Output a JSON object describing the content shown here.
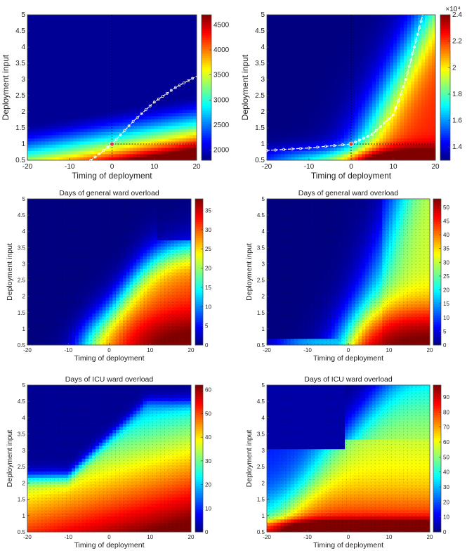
{
  "figure": {
    "colormap": "jet",
    "colors": {
      "low": "#00008f",
      "mid": "#80ff80",
      "high": "#800000",
      "marker": "#e03b3b",
      "dashed_line": "#000000"
    }
  },
  "chart_data": [
    {
      "type": "heatmap",
      "id": "p1",
      "title": "",
      "xlabel": "Timing of deployment",
      "ylabel": "Deployment input",
      "xlim": [
        -20,
        20
      ],
      "ylim": [
        0.5,
        5
      ],
      "xticks": [
        "-20",
        "-10",
        "0",
        "10",
        "20"
      ],
      "yticks": [
        "0.5",
        "1",
        "1.5",
        "2",
        "2.5",
        "3",
        "3.5",
        "4",
        "4.5",
        "5"
      ],
      "colorbar": {
        "range": [
          1800,
          4700
        ],
        "ticks": [
          "2000",
          "2500",
          "3000",
          "3500",
          "4000",
          "4500"
        ],
        "exponent": ""
      },
      "marker": {
        "x": 0,
        "y": 1
      },
      "optimal_curve": [
        [
          -5,
          0.5
        ],
        [
          0,
          1.0
        ],
        [
          5,
          1.7
        ],
        [
          10,
          2.3
        ],
        [
          15,
          2.75
        ],
        [
          20,
          3.1
        ]
      ],
      "reference_lines": {
        "x": 0,
        "y": 1
      }
    },
    {
      "type": "heatmap",
      "id": "p2",
      "title": "",
      "xlabel": "Timing of deployment",
      "ylabel": "Deployment input",
      "xlim": [
        -20,
        20
      ],
      "ylim": [
        0.5,
        5
      ],
      "xticks": [
        "-20",
        "-10",
        "0",
        "10",
        "20"
      ],
      "yticks": [
        "0.5",
        "1",
        "1.5",
        "2",
        "2.5",
        "3",
        "3.5",
        "4",
        "4.5",
        "5"
      ],
      "colorbar": {
        "range": [
          1.3,
          2.4
        ],
        "ticks": [
          "1.4",
          "1.6",
          "1.8",
          "2",
          "2.2",
          "2.4"
        ],
        "exponent": "×10⁴"
      },
      "marker": {
        "x": 0,
        "y": 1
      },
      "optimal_curve": [
        [
          -20,
          0.8
        ],
        [
          -10,
          0.88
        ],
        [
          0,
          1.0
        ],
        [
          5,
          1.3
        ],
        [
          10,
          1.9
        ],
        [
          13,
          3.0
        ],
        [
          15,
          4.0
        ],
        [
          17,
          5.0
        ]
      ],
      "reference_lines": {
        "x": 0,
        "y": 1
      }
    },
    {
      "type": "heatmap",
      "id": "p3",
      "title": "Days of general ward overload",
      "xlabel": "Timing of deployment",
      "ylabel": "Deployment input",
      "xlim": [
        -20,
        20
      ],
      "ylim": [
        0.5,
        5
      ],
      "xticks": [
        "-20",
        "-10",
        "0",
        "10",
        "20"
      ],
      "yticks": [
        "0.5",
        "1",
        "1.5",
        "2",
        "2.5",
        "3",
        "3.5",
        "4",
        "4.5",
        "5"
      ],
      "colorbar": {
        "range": [
          0,
          38
        ],
        "ticks": [
          "0",
          "5",
          "10",
          "15",
          "20",
          "25",
          "30",
          "35"
        ],
        "exponent": ""
      }
    },
    {
      "type": "heatmap",
      "id": "p4",
      "title": "Days of general ward overload",
      "xlabel": "Timing of deployment",
      "ylabel": "Deployment input",
      "xlim": [
        -20,
        20
      ],
      "ylim": [
        0.5,
        5
      ],
      "xticks": [
        "-20",
        "-10",
        "0",
        "10",
        "20"
      ],
      "yticks": [
        "0.5",
        "1",
        "1.5",
        "2",
        "2.5",
        "3",
        "3.5",
        "4",
        "4.5",
        "5"
      ],
      "colorbar": {
        "range": [
          0,
          53
        ],
        "ticks": [
          "0",
          "5",
          "10",
          "15",
          "20",
          "25",
          "30",
          "35",
          "40",
          "45",
          "50"
        ],
        "exponent": ""
      }
    },
    {
      "type": "heatmap",
      "id": "p5",
      "title": "Days of ICU ward overload",
      "xlabel": "Timing of deployment",
      "ylabel": "Deployment input",
      "xlim": [
        -20,
        20
      ],
      "ylim": [
        0.5,
        5
      ],
      "xticks": [
        "-20",
        "-10",
        "0",
        "10",
        "20"
      ],
      "yticks": [
        "0.5",
        "1",
        "1.5",
        "2",
        "2.5",
        "3",
        "3.5",
        "4",
        "4.5",
        "5"
      ],
      "colorbar": {
        "range": [
          0,
          62
        ],
        "ticks": [
          "0",
          "10",
          "20",
          "30",
          "40",
          "50",
          "60"
        ],
        "exponent": ""
      }
    },
    {
      "type": "heatmap",
      "id": "p6",
      "title": "Days of ICU ward overload",
      "xlabel": "Timing of deployment",
      "ylabel": "Deployment input",
      "xlim": [
        -20,
        20
      ],
      "ylim": [
        0.5,
        5
      ],
      "xticks": [
        "-20",
        "-10",
        "0",
        "10",
        "20"
      ],
      "yticks": [
        "0.5",
        "1",
        "1.5",
        "2",
        "2.5",
        "3",
        "3.5",
        "4",
        "4.5",
        "5"
      ],
      "colorbar": {
        "range": [
          0,
          98
        ],
        "ticks": [
          "0",
          "10",
          "20",
          "30",
          "40",
          "50",
          "60",
          "70",
          "80",
          "90"
        ],
        "exponent": ""
      }
    }
  ]
}
